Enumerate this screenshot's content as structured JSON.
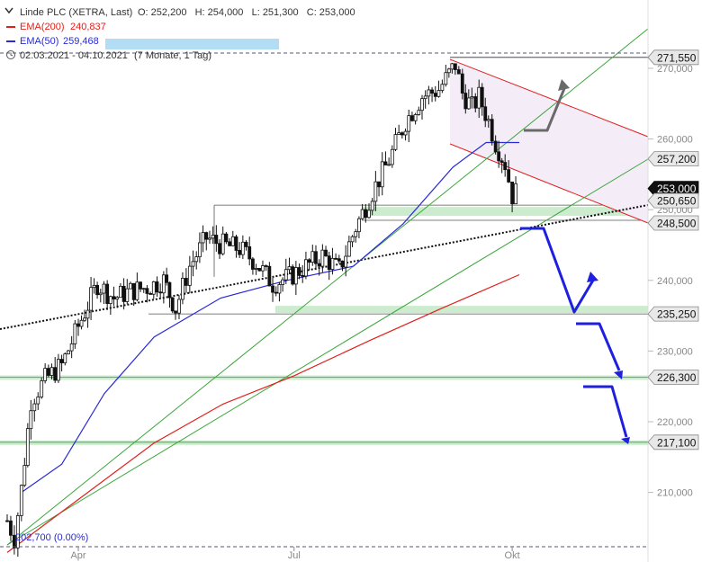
{
  "header": {
    "instrument": "Linde PLC (XETRA, Last)",
    "ohlc": "O: 252,200   H: 254,000   L: 251,300   C: 253,000",
    "ema200_label": "EMA(200)",
    "ema200_value": "240,837",
    "ema50_label": "EMA(50)",
    "ema50_value": "259,468",
    "range": "02.03.2021 - 04.10.2021",
    "range_note": "(7 Monate, 1 Tag)"
  },
  "colors": {
    "ema200": "#e0201b",
    "ema50": "#2a2ad6",
    "trend": "#3aa63a",
    "channel_line": "#e02020",
    "channel_fill": "#f4ecf6",
    "support_zone": "#cdeccf",
    "scenario_blue": "#1f1fe0",
    "scenario_gray": "#6a6a6a",
    "price_box": "#e8e8e8",
    "price_box_current": "#111111"
  },
  "chart_data": {
    "type": "candlestick",
    "title": "Linde PLC (XETRA, Last)",
    "x_range": [
      "2021-03-02",
      "2021-10-04"
    ],
    "y_range": [
      201.5,
      274.5
    ],
    "y_ticks": [
      "270,000",
      "260,000",
      "250,000",
      "240,000",
      "230,000",
      "220,000",
      "210,000"
    ],
    "y_tick_values": [
      270,
      260,
      250,
      240,
      230,
      220,
      210
    ],
    "x_ticks": [
      {
        "label": "Apr",
        "date": "2021-04-01"
      },
      {
        "label": "Jul",
        "date": "2021-07-01"
      },
      {
        "label": "Okt",
        "date": "2021-10-01"
      }
    ],
    "low_marker": {
      "label": "202,700 (0.00%)",
      "value": 202.7
    },
    "levels": [
      {
        "label": "271,550",
        "value": 271.55
      },
      {
        "label": "257,200",
        "value": 257.2
      },
      {
        "label": "253,000",
        "value": 253.0,
        "current": true
      },
      {
        "label": "250,650",
        "value": 250.65
      },
      {
        "label": "248,500",
        "value": 248.5
      },
      {
        "label": "235,250",
        "value": 235.25
      },
      {
        "label": "226,300",
        "value": 226.3
      },
      {
        "label": "217,100",
        "value": 217.1
      }
    ],
    "grid": false,
    "candle_samples": [
      {
        "date": "2021-03-02",
        "close": 206.0
      },
      {
        "date": "2021-03-05",
        "close": 203.5
      },
      {
        "date": "2021-03-08",
        "close": 210.5
      },
      {
        "date": "2021-03-12",
        "close": 223.0
      },
      {
        "date": "2021-03-18",
        "close": 226.0
      },
      {
        "date": "2021-03-25",
        "close": 228.0
      },
      {
        "date": "2021-04-01",
        "close": 233.5
      },
      {
        "date": "2021-04-09",
        "close": 239.5
      },
      {
        "date": "2021-04-16",
        "close": 237.5
      },
      {
        "date": "2021-04-23",
        "close": 238.5
      },
      {
        "date": "2021-04-30",
        "close": 239.0
      },
      {
        "date": "2021-05-07",
        "close": 240.0
      },
      {
        "date": "2021-05-12",
        "close": 236.0
      },
      {
        "date": "2021-05-18",
        "close": 242.0
      },
      {
        "date": "2021-05-25",
        "close": 246.0
      },
      {
        "date": "2021-06-01",
        "close": 245.0
      },
      {
        "date": "2021-06-08",
        "close": 244.5
      },
      {
        "date": "2021-06-15",
        "close": 242.5
      },
      {
        "date": "2021-06-22",
        "close": 239.5
      },
      {
        "date": "2021-06-29",
        "close": 240.5
      },
      {
        "date": "2021-07-06",
        "close": 242.0
      },
      {
        "date": "2021-07-13",
        "close": 243.5
      },
      {
        "date": "2021-07-20",
        "close": 241.5
      },
      {
        "date": "2021-07-27",
        "close": 247.5
      },
      {
        "date": "2021-08-03",
        "close": 252.5
      },
      {
        "date": "2021-08-10",
        "close": 257.0
      },
      {
        "date": "2021-08-17",
        "close": 262.5
      },
      {
        "date": "2021-08-24",
        "close": 266.0
      },
      {
        "date": "2021-08-31",
        "close": 267.0
      },
      {
        "date": "2021-09-03",
        "close": 268.5
      },
      {
        "date": "2021-09-07",
        "close": 270.5
      },
      {
        "date": "2021-09-10",
        "close": 266.5
      },
      {
        "date": "2021-09-14",
        "close": 264.5
      },
      {
        "date": "2021-09-17",
        "close": 266.0
      },
      {
        "date": "2021-09-21",
        "close": 262.5
      },
      {
        "date": "2021-09-24",
        "close": 259.5
      },
      {
        "date": "2021-09-28",
        "close": 256.5
      },
      {
        "date": "2021-10-01",
        "close": 252.0
      },
      {
        "date": "2021-10-04",
        "close": 253.0
      }
    ],
    "ema50_series": [
      {
        "date": "2021-03-08",
        "value": 210.0
      },
      {
        "date": "2021-03-25",
        "value": 214.0
      },
      {
        "date": "2021-04-12",
        "value": 224.0
      },
      {
        "date": "2021-05-03",
        "value": 232.0
      },
      {
        "date": "2021-05-31",
        "value": 237.5
      },
      {
        "date": "2021-06-28",
        "value": 240.0
      },
      {
        "date": "2021-07-26",
        "value": 242.0
      },
      {
        "date": "2021-08-16",
        "value": 248.0
      },
      {
        "date": "2021-09-06",
        "value": 256.0
      },
      {
        "date": "2021-09-20",
        "value": 259.5
      },
      {
        "date": "2021-10-04",
        "value": 259.5
      }
    ],
    "ema200_series": [
      {
        "date": "2021-03-02",
        "value": 201.5
      },
      {
        "date": "2021-04-01",
        "value": 209.0
      },
      {
        "date": "2021-05-03",
        "value": 217.0
      },
      {
        "date": "2021-06-01",
        "value": 222.5
      },
      {
        "date": "2021-07-01",
        "value": 226.5
      },
      {
        "date": "2021-08-02",
        "value": 231.5
      },
      {
        "date": "2021-09-01",
        "value": 236.0
      },
      {
        "date": "2021-10-04",
        "value": 240.8
      }
    ]
  }
}
